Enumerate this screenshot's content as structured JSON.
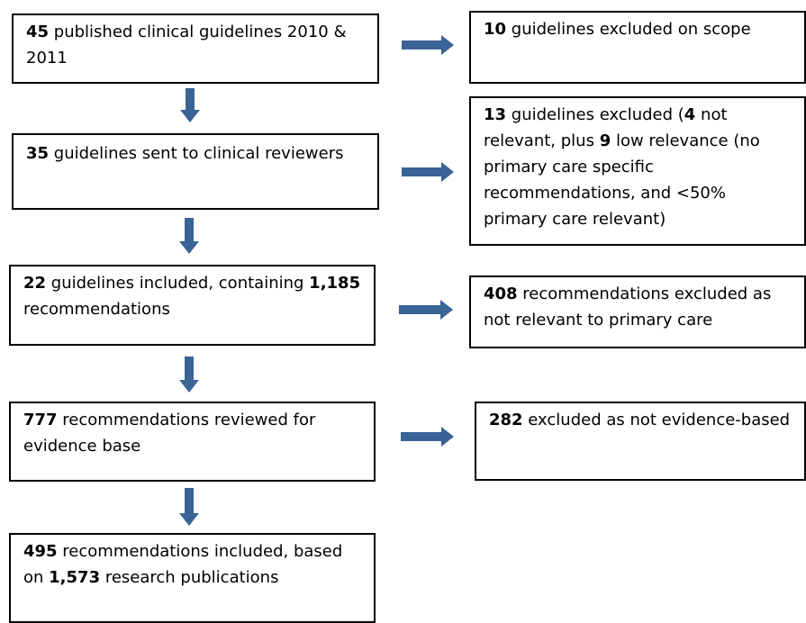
{
  "nodes": [
    {
      "runs": [
        {
          "text": "45",
          "bold": true
        },
        {
          "text": " published clinical guidelines 2010 & 2011",
          "bold": false
        }
      ]
    },
    {
      "runs": [
        {
          "text": "10",
          "bold": true
        },
        {
          "text": " guidelines excluded on scope",
          "bold": false
        }
      ]
    },
    {
      "runs": [
        {
          "text": "35",
          "bold": true
        },
        {
          "text": " guidelines sent to clinical reviewers",
          "bold": false
        }
      ]
    },
    {
      "runs": [
        {
          "text": "13",
          "bold": true
        },
        {
          "text": " guidelines excluded (",
          "bold": false
        },
        {
          "text": "4",
          "bold": true
        },
        {
          "text": " not relevant, plus ",
          "bold": false
        },
        {
          "text": "9",
          "bold": true
        },
        {
          "text": " low relevance (no primary care specific recommendations, and <50% primary care relevant)",
          "bold": false
        }
      ]
    },
    {
      "runs": [
        {
          "text": "22",
          "bold": true
        },
        {
          "text": " guidelines included, containing ",
          "bold": false
        },
        {
          "text": "1,185",
          "bold": true
        },
        {
          "text": " recommendations",
          "bold": false
        }
      ]
    },
    {
      "runs": [
        {
          "text": "408",
          "bold": true
        },
        {
          "text": " recommendations excluded as not relevant to primary care",
          "bold": false
        }
      ]
    },
    {
      "runs": [
        {
          "text": "777",
          "bold": true
        },
        {
          "text": " recommendations reviewed for evidence base",
          "bold": false
        }
      ]
    },
    {
      "runs": [
        {
          "text": "282",
          "bold": true
        },
        {
          "text": " excluded as not evidence-based",
          "bold": false
        }
      ]
    },
    {
      "runs": [
        {
          "text": "495",
          "bold": true
        },
        {
          "text": " recommendations included, based on ",
          "bold": false
        },
        {
          "text": "1,573",
          "bold": true
        },
        {
          "text": " research publications",
          "bold": false
        }
      ]
    }
  ]
}
